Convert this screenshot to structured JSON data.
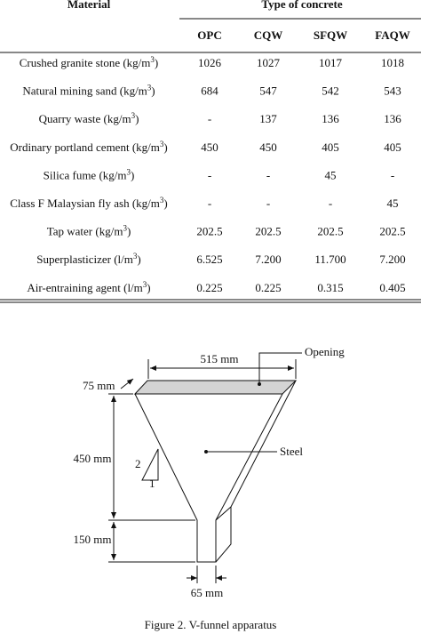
{
  "table": {
    "header": {
      "material": "Material",
      "type": "Type of concrete",
      "columns": [
        "OPC",
        "CQW",
        "SFQW",
        "FAQW"
      ]
    },
    "rows": [
      {
        "label": {
          "text": "Crushed granite stone (kg/m",
          "sup": "3",
          "tail": ")"
        },
        "cells": [
          "1026",
          "1027",
          "1017",
          "1018"
        ]
      },
      {
        "label": {
          "text": "Natural mining sand (kg/m",
          "sup": "3",
          "tail": ")"
        },
        "cells": [
          "684",
          "547",
          "542",
          "543"
        ]
      },
      {
        "label": {
          "text": "Quarry waste (kg/m",
          "sup": "3",
          "tail": ")"
        },
        "cells": [
          "-",
          "137",
          "136",
          "136"
        ]
      },
      {
        "label": {
          "text": "Ordinary portland cement (kg/m",
          "sup": "3",
          "tail": ")"
        },
        "cells": [
          "450",
          "450",
          "405",
          "405"
        ]
      },
      {
        "label": {
          "text": "Silica fume (kg/m",
          "sup": "3",
          "tail": ")"
        },
        "cells": [
          "-",
          "-",
          "45",
          "-"
        ]
      },
      {
        "label": {
          "text": "Class F Malaysian fly ash (kg/m",
          "sup": "3",
          "tail": ")"
        },
        "cells": [
          "-",
          "-",
          "-",
          "45"
        ]
      },
      {
        "label": {
          "text": "Tap water (kg/m",
          "sup": "3",
          "tail": ")"
        },
        "cells": [
          "202.5",
          "202.5",
          "202.5",
          "202.5"
        ]
      },
      {
        "label": {
          "text": "Superplasticizer (l/m",
          "sup": "3",
          "tail": ")"
        },
        "cells": [
          "6.525",
          "7.200",
          "11.700",
          "7.200"
        ]
      },
      {
        "label": {
          "text": "Air-entraining agent (l/m",
          "sup": "3",
          "tail": ")"
        },
        "cells": [
          "0.225",
          "0.225",
          "0.315",
          "0.405"
        ]
      }
    ]
  },
  "figure": {
    "labels": {
      "width": "515 mm",
      "opening": "Opening",
      "thickness": "75 mm",
      "height": "450 mm",
      "material": "Steel",
      "slope_rise": "2",
      "slope_run": "1",
      "outlet_height": "150 mm",
      "outlet_width": "65 mm"
    },
    "caption": "Figure 2. V-funnel apparatus"
  }
}
